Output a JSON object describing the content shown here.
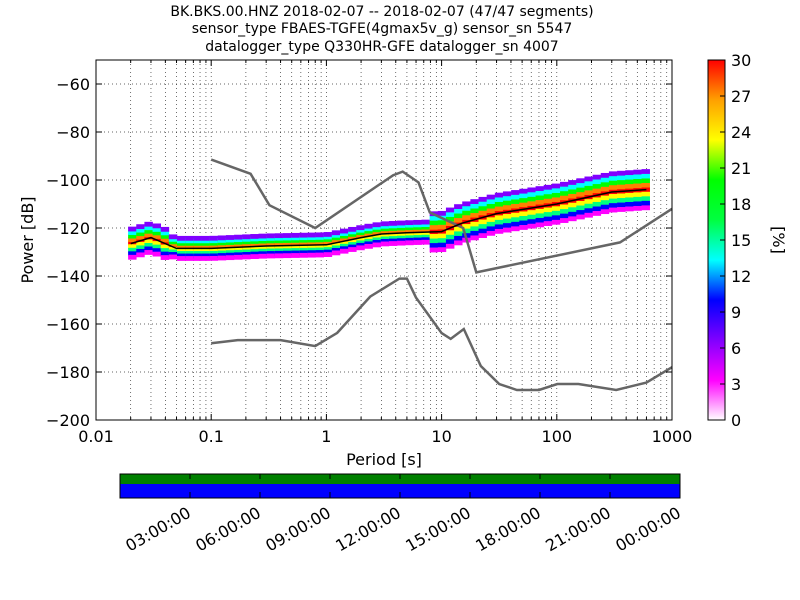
{
  "title_lines": [
    "BK.BKS.00.HNZ   2018-02-07 -- 2018-02-07  (47/47 segments)",
    "sensor_type FBAES-TGFE(4gmax5v_g) sensor_sn 5547",
    "datalogger_type Q330HR-GFE datalogger_sn 4007"
  ],
  "chart_data": {
    "type": "heatmap",
    "xlabel": "Period [s]",
    "ylabel": "Power [dB]",
    "x_scale": "log",
    "xlim": [
      0.01,
      1000
    ],
    "ylim": [
      -200,
      -50
    ],
    "xticks": [
      0.01,
      0.1,
      1,
      10,
      100,
      1000
    ],
    "xtick_labels": [
      "0.01",
      "0.1",
      "1",
      "10",
      "100",
      "1000"
    ],
    "yticks": [
      -200,
      -180,
      -160,
      -140,
      -120,
      -100,
      -80,
      -60
    ],
    "ytick_labels": [
      "−200",
      "−180",
      "−160",
      "−140",
      "−120",
      "−100",
      "−80",
      "−60"
    ],
    "grid": "dotted, vertical at log sub-decades",
    "noise_models": [
      {
        "id": "high-noise-model",
        "points": [
          [
            0.1,
            -91.5
          ],
          [
            0.22,
            -97.4
          ],
          [
            0.32,
            -110.5
          ],
          [
            0.8,
            -120
          ],
          [
            3.8,
            -98
          ],
          [
            4.6,
            -96.5
          ],
          [
            6.3,
            -101
          ],
          [
            7.9,
            -113.5
          ],
          [
            15.4,
            -120
          ],
          [
            20,
            -138.5
          ],
          [
            354,
            -126
          ],
          [
            1000,
            -112
          ]
        ]
      },
      {
        "id": "low-noise-model",
        "points": [
          [
            0.1,
            -168
          ],
          [
            0.17,
            -166.7
          ],
          [
            0.4,
            -166.7
          ],
          [
            0.8,
            -169.2
          ],
          [
            1.24,
            -163.7
          ],
          [
            2.4,
            -148.6
          ],
          [
            4.3,
            -141.1
          ],
          [
            5,
            -141.1
          ],
          [
            6,
            -149
          ],
          [
            10,
            -163.8
          ],
          [
            12,
            -166.2
          ],
          [
            15.6,
            -162.1
          ],
          [
            21.9,
            -177.5
          ],
          [
            31.6,
            -185
          ],
          [
            45,
            -187.5
          ],
          [
            70,
            -187.5
          ],
          [
            101,
            -185
          ],
          [
            154,
            -185
          ],
          [
            328,
            -187.5
          ],
          [
            600,
            -184.4
          ],
          [
            1000,
            -178
          ]
        ]
      }
    ],
    "mean_psd": [
      [
        0.02,
        -126.5
      ],
      [
        0.03,
        -124
      ],
      [
        0.05,
        -128.5
      ],
      [
        0.1,
        -128.5
      ],
      [
        0.3,
        -127.5
      ],
      [
        1,
        -127
      ],
      [
        2,
        -124
      ],
      [
        3,
        -122.5
      ],
      [
        5,
        -122
      ],
      [
        10,
        -121.5
      ],
      [
        15,
        -118
      ],
      [
        30,
        -114
      ],
      [
        100,
        -110
      ],
      [
        300,
        -105
      ],
      [
        600,
        -104
      ]
    ],
    "colorbar": {
      "label": "[%]",
      "range": [
        0,
        30
      ],
      "ticks": [
        0,
        3,
        6,
        9,
        12,
        15,
        18,
        21,
        24,
        27,
        30
      ],
      "colormap": "pqlx",
      "colors": [
        "#ffffff",
        "#ff00ff",
        "#8000ff",
        "#0000ff",
        "#00ffff",
        "#00ff40",
        "#00ff00",
        "#ffff00",
        "#ffa000",
        "#ff0000"
      ]
    },
    "coverage": {
      "data_color": "#008000",
      "gap_color": "#0000ff",
      "time_labels": [
        "03:00:00",
        "06:00:00",
        "09:00:00",
        "12:00:00",
        "15:00:00",
        "18:00:00",
        "21:00:00",
        "00:00:00"
      ]
    }
  }
}
